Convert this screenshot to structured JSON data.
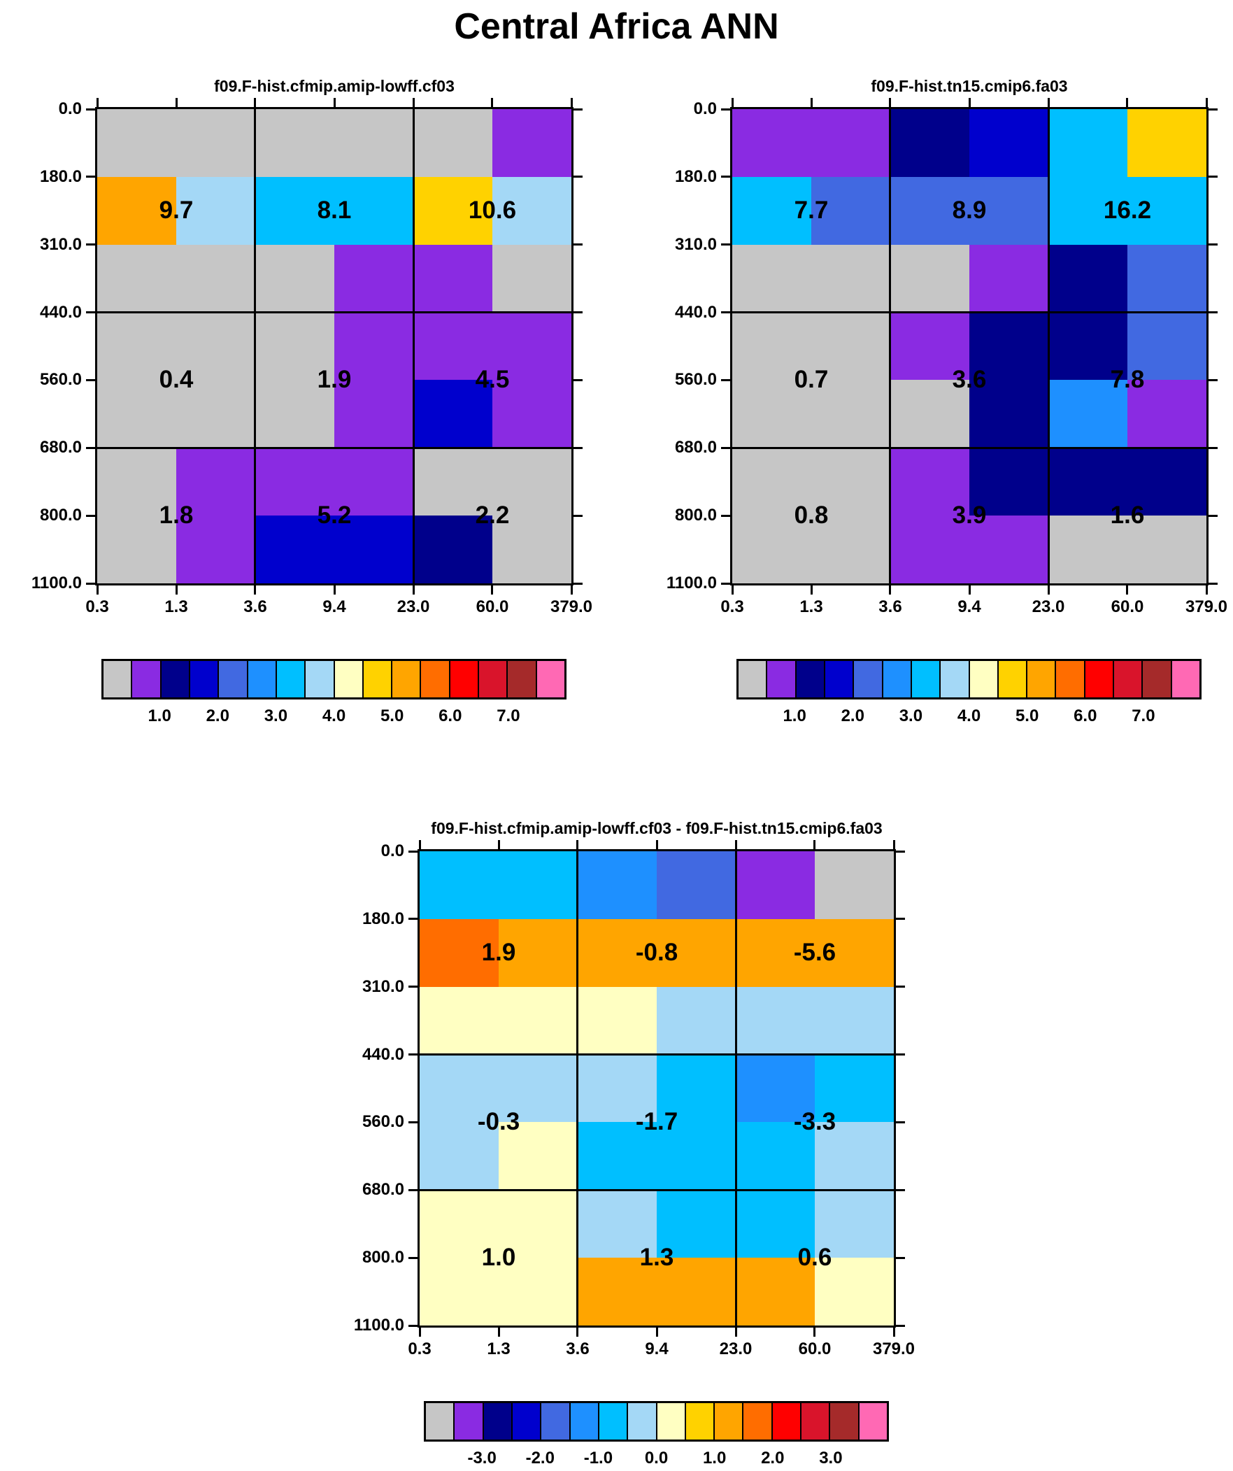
{
  "title": "Central Africa ANN",
  "chart_data": {
    "type": "heatmap",
    "description": "ISCCP-style cloud-regime joint histograms (optical depth vs cloud top pressure) for two model runs and their difference, with 3x3 block-aggregate values printed on each panel",
    "x_axis_label_values": [
      "0.3",
      "1.3",
      "3.6",
      "9.4",
      "23.0",
      "60.0",
      "379.0"
    ],
    "y_axis_label_values": [
      "0.0",
      "180.0",
      "310.0",
      "440.0",
      "560.0",
      "680.0",
      "800.0",
      "1100.0"
    ],
    "grid": {
      "columns": 6,
      "rows": 7,
      "coarse_blocks": "3x3"
    },
    "palette": {
      "gray": "#C6C6C6",
      "purple": "#8A2BE2",
      "navy": "#00008B",
      "blue": "#0000CD",
      "royalblue": "#4169E1",
      "dodgerblue": "#1E90FF",
      "cyan": "#00BFFF",
      "paleblue": "#A4D8F6",
      "paleyellow": "#FFFFC2",
      "gold": "#FFD200",
      "orange": "#FFA500",
      "orangered": "#FF6D00",
      "red": "#FF0000",
      "crimson": "#D9142B",
      "brown": "#A52A2A",
      "pink": "#FF69B4"
    },
    "colorbar_order": [
      "gray",
      "purple",
      "navy",
      "blue",
      "royalblue",
      "dodgerblue",
      "cyan",
      "paleblue",
      "paleyellow",
      "gold",
      "orange",
      "orangered",
      "red",
      "crimson",
      "brown",
      "pink"
    ],
    "panels": [
      {
        "id": "model-a",
        "title": "f09.F-hist.cfmip.amip-lowff.cf03",
        "cells": [
          [
            "gray",
            "gray",
            "gray",
            "gray",
            "gray",
            "purple"
          ],
          [
            "orange",
            "paleblue",
            "cyan",
            "cyan",
            "gold",
            "paleblue"
          ],
          [
            "gray",
            "gray",
            "gray",
            "purple",
            "purple",
            "gray"
          ],
          [
            "gray",
            "gray",
            "gray",
            "purple",
            "purple",
            "purple"
          ],
          [
            "gray",
            "gray",
            "gray",
            "purple",
            "blue",
            "purple"
          ],
          [
            "gray",
            "purple",
            "purple",
            "purple",
            "gray",
            "gray"
          ],
          [
            "gray",
            "purple",
            "blue",
            "blue",
            "navy",
            "gray"
          ]
        ],
        "block_values": [
          [
            "9.7",
            "8.1",
            "10.6"
          ],
          [
            "0.4",
            "1.9",
            "4.5"
          ],
          [
            "1.8",
            "5.2",
            "2.2"
          ]
        ],
        "colorbar_labels": [
          "1.0",
          "2.0",
          "3.0",
          "4.0",
          "5.0",
          "6.0",
          "7.0"
        ]
      },
      {
        "id": "model-b",
        "title": "f09.F-hist.tn15.cmip6.fa03",
        "cells": [
          [
            "purple",
            "purple",
            "navy",
            "blue",
            "cyan",
            "gold"
          ],
          [
            "cyan",
            "royalblue",
            "royalblue",
            "royalblue",
            "cyan",
            "cyan"
          ],
          [
            "gray",
            "gray",
            "gray",
            "purple",
            "navy",
            "royalblue"
          ],
          [
            "gray",
            "gray",
            "purple",
            "navy",
            "navy",
            "royalblue"
          ],
          [
            "gray",
            "gray",
            "gray",
            "navy",
            "dodgerblue",
            "purple"
          ],
          [
            "gray",
            "gray",
            "purple",
            "navy",
            "navy",
            "navy"
          ],
          [
            "gray",
            "gray",
            "purple",
            "purple",
            "gray",
            "gray"
          ]
        ],
        "block_values": [
          [
            "7.7",
            "8.9",
            "16.2"
          ],
          [
            "0.7",
            "3.6",
            "7.8"
          ],
          [
            "0.8",
            "3.9",
            "1.6"
          ]
        ],
        "colorbar_labels": [
          "1.0",
          "2.0",
          "3.0",
          "4.0",
          "5.0",
          "6.0",
          "7.0"
        ]
      },
      {
        "id": "difference",
        "title": "f09.F-hist.cfmip.amip-lowff.cf03 - f09.F-hist.tn15.cmip6.fa03",
        "cells": [
          [
            "cyan",
            "cyan",
            "dodgerblue",
            "royalblue",
            "purple",
            "gray"
          ],
          [
            "orangered",
            "orange",
            "orange",
            "orange",
            "orange",
            "orange"
          ],
          [
            "paleyellow",
            "paleyellow",
            "paleyellow",
            "paleblue",
            "paleblue",
            "paleblue"
          ],
          [
            "paleblue",
            "paleblue",
            "paleblue",
            "cyan",
            "dodgerblue",
            "cyan"
          ],
          [
            "paleblue",
            "paleyellow",
            "cyan",
            "cyan",
            "cyan",
            "paleblue"
          ],
          [
            "paleyellow",
            "paleyellow",
            "paleblue",
            "cyan",
            "cyan",
            "paleblue"
          ],
          [
            "paleyellow",
            "paleyellow",
            "orange",
            "orange",
            "orange",
            "paleyellow"
          ]
        ],
        "block_values": [
          [
            "1.9",
            "-0.8",
            "-5.6"
          ],
          [
            "-0.3",
            "-1.7",
            "-3.3"
          ],
          [
            "1.0",
            "1.3",
            "0.6"
          ]
        ],
        "colorbar_labels": [
          "-3.0",
          "-2.0",
          "-1.0",
          "0.0",
          "1.0",
          "2.0",
          "3.0"
        ]
      }
    ]
  }
}
